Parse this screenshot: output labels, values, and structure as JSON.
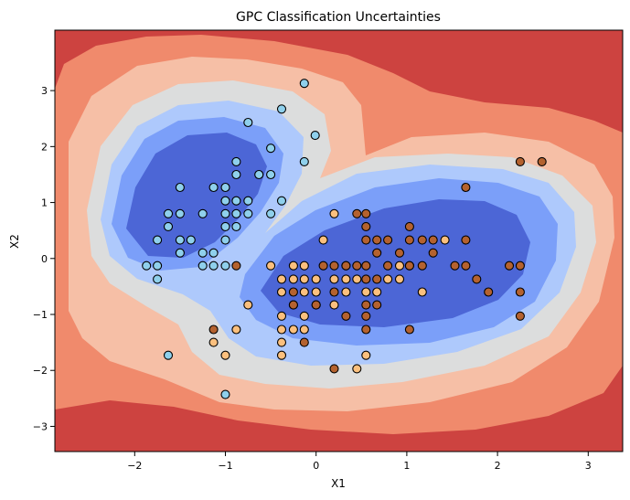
{
  "chart_data": {
    "type": "scatter",
    "title": "GPC Classification Uncertainties",
    "xlabel": "X1",
    "ylabel": "X2",
    "xlim": [
      -2.88,
      3.38
    ],
    "ylim": [
      -3.45,
      4.08
    ],
    "x_ticks": [
      -2,
      -1,
      0,
      1,
      2,
      3
    ],
    "y_ticks": [
      -3,
      -2,
      -1,
      0,
      1,
      2,
      3
    ],
    "grid": false,
    "legend": "none",
    "contour": {
      "description": "filled contour of predictive uncertainty, coolwarm colormap: low uncertainty (blue) inside the two clusters, high uncertainty (red) far from data",
      "levels": [
        "#cd4340",
        "#f08a6c",
        "#f6bfa6",
        "#dcdddd",
        "#aec9fc",
        "#7b9ff9",
        "#4c66d6"
      ]
    },
    "series": [
      {
        "colors": {
          "fill": "#8fd0ec",
          "alt_fill": "#a9d8f0"
        },
        "points": [
          [
            -1.87,
            -0.13
          ],
          [
            -1.75,
            -0.13
          ],
          [
            -1.75,
            -0.37
          ],
          [
            -1.75,
            0.33
          ],
          [
            -1.63,
            -1.73
          ],
          [
            -1.63,
            0.57
          ],
          [
            -1.63,
            0.8
          ],
          [
            -1.5,
            1.27
          ],
          [
            -1.5,
            0.8
          ],
          [
            -1.5,
            0.33
          ],
          [
            -1.5,
            0.1
          ],
          [
            -1.38,
            0.33
          ],
          [
            -1.25,
            0.8
          ],
          [
            -1.25,
            0.1
          ],
          [
            -1.25,
            -0.13
          ],
          [
            -1.13,
            1.27
          ],
          [
            -1.13,
            0.1
          ],
          [
            -1.13,
            -0.13
          ],
          [
            -1.0,
            1.27
          ],
          [
            -1.0,
            1.03
          ],
          [
            -1.0,
            0.8
          ],
          [
            -1.0,
            0.57
          ],
          [
            -1.0,
            0.33
          ],
          [
            -1.0,
            -0.13
          ],
          [
            -0.88,
            1.73
          ],
          [
            -0.88,
            1.5
          ],
          [
            -0.88,
            1.03
          ],
          [
            -0.88,
            0.8
          ],
          [
            -0.88,
            0.57
          ],
          [
            -0.75,
            2.43
          ],
          [
            -0.75,
            1.03
          ],
          [
            -0.75,
            0.8
          ],
          [
            -0.63,
            1.5
          ],
          [
            -0.5,
            1.97
          ],
          [
            -0.5,
            1.5
          ],
          [
            -0.5,
            0.8
          ],
          [
            -0.38,
            2.67
          ],
          [
            -0.38,
            1.03
          ],
          [
            -0.13,
            1.73
          ],
          [
            -0.13,
            3.13
          ],
          [
            -0.01,
            2.2
          ],
          [
            -1.0,
            -2.43
          ]
        ]
      },
      {
        "colors": {
          "fill": "#fbc07e"
        },
        "points": [
          [
            -1.13,
            -1.5
          ],
          [
            -1.0,
            -1.73
          ],
          [
            -0.88,
            -1.27
          ],
          [
            -0.75,
            -0.83
          ],
          [
            -0.5,
            -0.13
          ],
          [
            -0.38,
            -1.73
          ],
          [
            -0.38,
            -1.5
          ],
          [
            -0.38,
            -1.27
          ],
          [
            -0.38,
            -1.03
          ],
          [
            -0.38,
            -0.6
          ],
          [
            -0.38,
            -0.37
          ],
          [
            -0.25,
            -1.27
          ],
          [
            -0.25,
            -0.83
          ],
          [
            -0.25,
            -0.37
          ],
          [
            -0.25,
            -0.13
          ],
          [
            -0.13,
            -1.27
          ],
          [
            -0.13,
            -1.03
          ],
          [
            -0.13,
            -0.6
          ],
          [
            -0.13,
            -0.37
          ],
          [
            -0.13,
            -0.13
          ],
          [
            0.0,
            -0.37
          ],
          [
            0.0,
            -0.6
          ],
          [
            0.0,
            -0.83
          ],
          [
            0.08,
            0.33
          ],
          [
            0.2,
            0.8
          ],
          [
            0.2,
            -0.37
          ],
          [
            0.2,
            -0.83
          ],
          [
            0.33,
            -0.13
          ],
          [
            0.33,
            -0.37
          ],
          [
            0.33,
            -0.6
          ],
          [
            0.45,
            -0.37
          ],
          [
            0.45,
            -1.97
          ],
          [
            0.55,
            -1.73
          ],
          [
            0.55,
            -0.6
          ],
          [
            0.67,
            -0.6
          ],
          [
            0.79,
            -0.37
          ],
          [
            0.92,
            -0.13
          ],
          [
            0.92,
            -0.37
          ],
          [
            1.03,
            -0.13
          ],
          [
            1.17,
            -0.6
          ],
          [
            1.42,
            0.33
          ]
        ]
      },
      {
        "colors": {
          "fill": "#b4622f"
        },
        "points": [
          [
            -1.13,
            -1.27
          ],
          [
            -0.88,
            -0.13
          ],
          [
            -0.25,
            -0.6
          ],
          [
            -0.25,
            -0.83
          ],
          [
            -0.13,
            -1.5
          ],
          [
            0.0,
            -0.83
          ],
          [
            0.08,
            -0.13
          ],
          [
            0.2,
            -0.13
          ],
          [
            0.2,
            -0.6
          ],
          [
            0.2,
            -1.97
          ],
          [
            0.33,
            -0.13
          ],
          [
            0.33,
            -1.03
          ],
          [
            0.45,
            0.8
          ],
          [
            0.45,
            -0.13
          ],
          [
            0.55,
            0.8
          ],
          [
            0.55,
            0.57
          ],
          [
            0.55,
            0.33
          ],
          [
            0.55,
            -0.13
          ],
          [
            0.55,
            -0.37
          ],
          [
            0.55,
            -0.83
          ],
          [
            0.55,
            -1.03
          ],
          [
            0.55,
            -1.27
          ],
          [
            0.67,
            0.33
          ],
          [
            0.67,
            0.1
          ],
          [
            0.67,
            -0.37
          ],
          [
            0.67,
            -0.83
          ],
          [
            0.79,
            0.33
          ],
          [
            0.79,
            -0.13
          ],
          [
            0.92,
            0.1
          ],
          [
            1.03,
            0.57
          ],
          [
            1.03,
            0.33
          ],
          [
            1.03,
            -0.13
          ],
          [
            1.03,
            -1.27
          ],
          [
            1.17,
            0.33
          ],
          [
            1.17,
            -0.13
          ],
          [
            1.29,
            0.33
          ],
          [
            1.29,
            0.1
          ],
          [
            1.53,
            -0.13
          ],
          [
            1.65,
            1.27
          ],
          [
            1.65,
            0.33
          ],
          [
            1.65,
            -0.13
          ],
          [
            1.77,
            -0.37
          ],
          [
            1.9,
            -0.6
          ],
          [
            2.13,
            -0.13
          ],
          [
            2.25,
            1.73
          ],
          [
            2.25,
            -0.13
          ],
          [
            2.25,
            -0.6
          ],
          [
            2.25,
            -1.03
          ],
          [
            2.49,
            1.73
          ]
        ]
      }
    ]
  }
}
